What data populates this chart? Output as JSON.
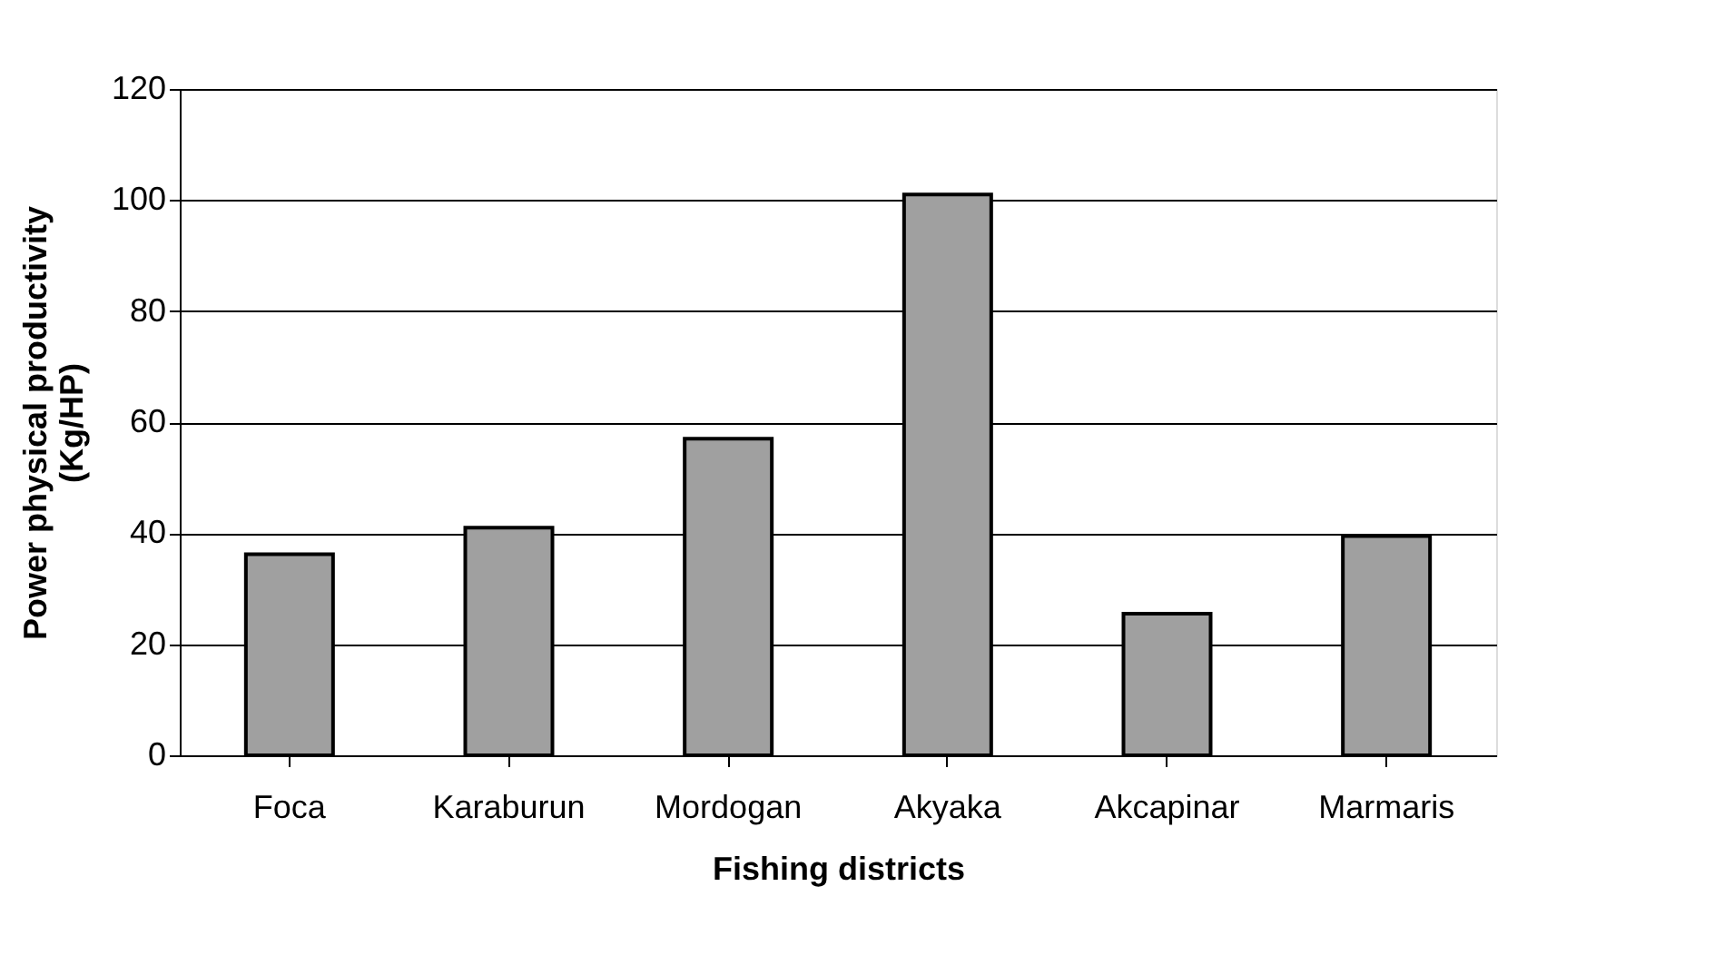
{
  "chart_data": {
    "type": "bar",
    "xlabel": "Fishing districts",
    "ylabel": "Power physical productivity\n(Kg/HP)",
    "categories": [
      "Foca",
      "Karaburun",
      "Mordogan",
      "Akyaka",
      "Akcapinar",
      "Marmaris"
    ],
    "values": [
      36.2,
      41.0,
      57.0,
      101.0,
      25.5,
      39.5
    ],
    "color": "#a0a0a0",
    "ylim": [
      0,
      120
    ],
    "yticks": [
      0,
      20,
      40,
      60,
      80,
      100,
      120
    ],
    "grid": "y"
  }
}
